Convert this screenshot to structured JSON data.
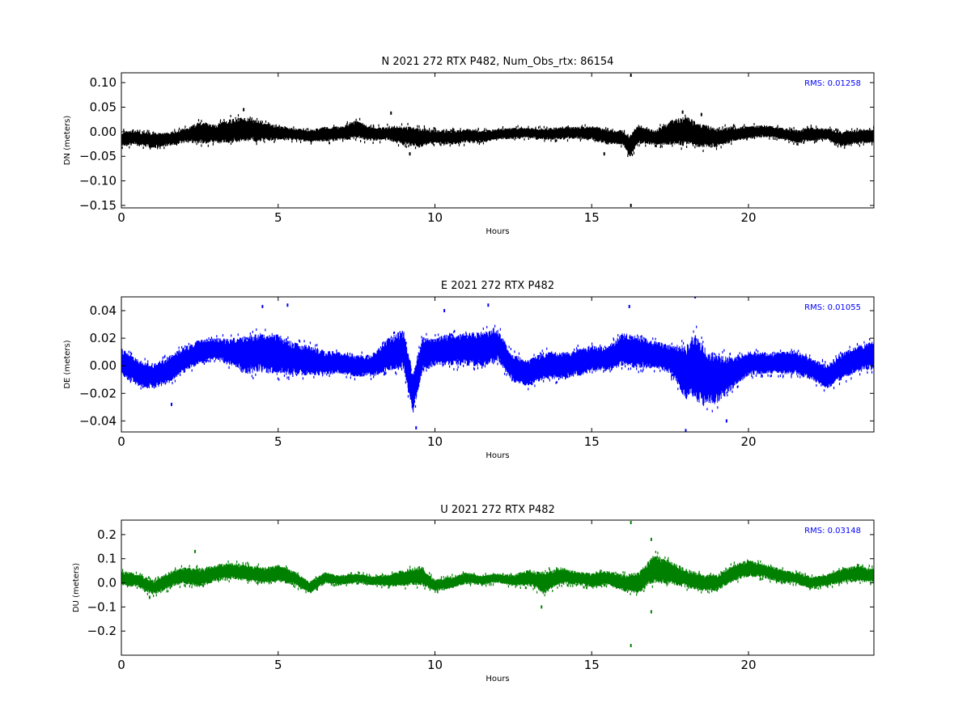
{
  "chart_data": [
    {
      "type": "line",
      "title": "N 2021 272 RTX  P482, Num_Obs_rtx: 86154",
      "xlabel": "Hours",
      "ylabel": "DN (meters)",
      "xlim": [
        0,
        24
      ],
      "ylim": [
        -0.155,
        0.12
      ],
      "xticks": [
        0,
        5,
        10,
        15,
        20
      ],
      "xtick_labels": [
        "0",
        "5",
        "10",
        "15",
        "20"
      ],
      "yticks": [
        0.1,
        0.05,
        0.0,
        -0.05,
        -0.1,
        -0.15
      ],
      "ytick_labels": [
        "0.10",
        "0.05",
        "0.00",
        "−0.05",
        "−0.10",
        "−0.15"
      ],
      "grid": false,
      "annotation": "RMS:  0.01258",
      "annotation_color": "#0000ff",
      "series_color": "#000000",
      "series": [
        {
          "x": [
            0,
            0.5,
            1,
            1.5,
            2,
            2.5,
            3,
            3.5,
            4,
            4.5,
            5,
            5.5,
            6,
            6.5,
            7,
            7.5,
            8,
            8.5,
            9,
            9.5,
            10,
            10.5,
            11,
            11.5,
            12,
            12.5,
            13,
            13.5,
            14,
            14.5,
            15,
            15.5,
            16,
            16.2,
            16.5,
            17,
            17.5,
            18,
            18.5,
            19,
            19.5,
            20,
            20.5,
            21,
            21.5,
            22,
            22.5,
            23,
            23.5,
            24
          ],
          "center": [
            -0.015,
            -0.012,
            -0.018,
            -0.015,
            -0.008,
            -0.002,
            -0.005,
            0.002,
            0.005,
            0.0,
            -0.002,
            -0.005,
            -0.008,
            -0.005,
            -0.003,
            0.005,
            -0.005,
            -0.003,
            -0.008,
            -0.012,
            -0.01,
            -0.012,
            -0.008,
            -0.01,
            -0.005,
            -0.003,
            -0.002,
            -0.005,
            -0.003,
            -0.002,
            -0.003,
            -0.01,
            -0.012,
            -0.03,
            -0.005,
            -0.012,
            -0.002,
            0.002,
            -0.008,
            -0.012,
            -0.005,
            -0.002,
            0.002,
            -0.003,
            -0.01,
            -0.005,
            -0.005,
            -0.015,
            -0.01,
            -0.008
          ],
          "spread": [
            0.015,
            0.015,
            0.016,
            0.014,
            0.015,
            0.022,
            0.02,
            0.025,
            0.025,
            0.02,
            0.015,
            0.012,
            0.013,
            0.015,
            0.015,
            0.02,
            0.014,
            0.014,
            0.02,
            0.02,
            0.014,
            0.015,
            0.015,
            0.012,
            0.011,
            0.012,
            0.01,
            0.012,
            0.013,
            0.012,
            0.015,
            0.016,
            0.015,
            0.025,
            0.02,
            0.015,
            0.025,
            0.03,
            0.025,
            0.02,
            0.015,
            0.013,
            0.012,
            0.012,
            0.014,
            0.014,
            0.012,
            0.016,
            0.015,
            0.015
          ],
          "outliers": [
            {
              "x": 16.25,
              "y": 0.115
            },
            {
              "x": 16.25,
              "y": -0.15
            },
            {
              "x": 3.9,
              "y": 0.045
            },
            {
              "x": 8.6,
              "y": 0.038
            },
            {
              "x": 17.9,
              "y": 0.04
            },
            {
              "x": 18.5,
              "y": 0.035
            },
            {
              "x": 9.2,
              "y": -0.045
            },
            {
              "x": 15.4,
              "y": -0.045
            }
          ]
        }
      ]
    },
    {
      "type": "line",
      "title": "E 2021 272 RTX  P482",
      "xlabel": "Hours",
      "ylabel": "DE (meters)",
      "xlim": [
        0,
        24
      ],
      "ylim": [
        -0.048,
        0.05
      ],
      "xticks": [
        0,
        5,
        10,
        15,
        20
      ],
      "xtick_labels": [
        "0",
        "5",
        "10",
        "15",
        "20"
      ],
      "yticks": [
        0.04,
        0.02,
        0.0,
        -0.02,
        -0.04
      ],
      "ytick_labels": [
        "0.04",
        "0.02",
        "0.00",
        "−0.02",
        "−0.04"
      ],
      "grid": false,
      "annotation": "RMS:  0.01055",
      "annotation_color": "#0000ff",
      "series_color": "#0000ff",
      "series": [
        {
          "x": [
            0,
            0.5,
            1,
            1.5,
            2,
            2.5,
            3,
            3.5,
            4,
            4.5,
            5,
            5.5,
            6,
            6.5,
            7,
            7.5,
            8,
            8.5,
            9,
            9.3,
            9.6,
            10,
            10.5,
            11,
            11.5,
            12,
            12.5,
            13,
            13.5,
            14,
            14.5,
            15,
            15.5,
            16,
            16.5,
            17,
            17.5,
            18,
            18.3,
            18.6,
            19,
            19.5,
            20,
            20.5,
            21,
            21.5,
            22,
            22.5,
            23,
            23.5,
            24
          ],
          "center": [
            0.003,
            -0.005,
            -0.008,
            -0.003,
            0.005,
            0.01,
            0.012,
            0.01,
            0.008,
            0.01,
            0.008,
            0.005,
            0.004,
            0.002,
            0.002,
            0.0,
            0.0,
            0.008,
            0.012,
            -0.02,
            0.008,
            0.01,
            0.012,
            0.012,
            0.012,
            0.015,
            -0.002,
            -0.005,
            0.0,
            0.0,
            0.002,
            0.005,
            0.005,
            0.012,
            0.01,
            0.008,
            0.005,
            -0.005,
            0.0,
            -0.008,
            -0.01,
            -0.005,
            0.002,
            0.002,
            0.002,
            0.002,
            -0.002,
            -0.008,
            0.0,
            0.005,
            0.008
          ],
          "spread": [
            0.01,
            0.01,
            0.009,
            0.01,
            0.009,
            0.009,
            0.008,
            0.01,
            0.014,
            0.015,
            0.015,
            0.012,
            0.011,
            0.009,
            0.008,
            0.008,
            0.008,
            0.012,
            0.015,
            0.015,
            0.013,
            0.01,
            0.012,
            0.012,
            0.013,
            0.012,
            0.01,
            0.01,
            0.01,
            0.01,
            0.01,
            0.01,
            0.009,
            0.012,
            0.012,
            0.01,
            0.011,
            0.02,
            0.025,
            0.022,
            0.018,
            0.012,
            0.009,
            0.008,
            0.008,
            0.009,
            0.008,
            0.009,
            0.01,
            0.01,
            0.01
          ],
          "outliers": [
            {
              "x": 4.5,
              "y": 0.043
            },
            {
              "x": 5.3,
              "y": 0.044
            },
            {
              "x": 10.3,
              "y": 0.04
            },
            {
              "x": 11.7,
              "y": 0.044
            },
            {
              "x": 16.2,
              "y": 0.043
            },
            {
              "x": 18.3,
              "y": 0.05
            },
            {
              "x": 18.0,
              "y": -0.047
            },
            {
              "x": 9.4,
              "y": -0.045
            },
            {
              "x": 19.3,
              "y": -0.04
            },
            {
              "x": 1.6,
              "y": -0.028
            }
          ]
        }
      ]
    },
    {
      "type": "line",
      "title": "U 2021 272 RTX  P482",
      "xlabel": "Hours",
      "ylabel": "DU (meters)",
      "xlim": [
        0,
        24
      ],
      "ylim": [
        -0.3,
        0.26
      ],
      "xticks": [
        0,
        5,
        10,
        15,
        20
      ],
      "xtick_labels": [
        "0",
        "5",
        "10",
        "15",
        "20"
      ],
      "yticks": [
        0.2,
        0.1,
        0.0,
        -0.1,
        -0.2
      ],
      "ytick_labels": [
        "0.2",
        "0.1",
        "0.0",
        "−0.1",
        "−0.2"
      ],
      "grid": false,
      "annotation": "RMS:  0.03148",
      "annotation_color": "#0000ff",
      "series_color": "#008000",
      "series": [
        {
          "x": [
            0,
            0.5,
            1,
            1.5,
            2,
            2.5,
            3,
            3.5,
            4,
            4.5,
            5,
            5.5,
            6,
            6.5,
            7,
            7.5,
            8,
            8.5,
            9,
            9.5,
            10,
            10.5,
            11,
            11.5,
            12,
            12.5,
            13,
            13.5,
            14,
            14.5,
            15,
            15.5,
            16,
            16.5,
            17,
            17.5,
            18,
            18.5,
            19,
            19.5,
            20,
            20.5,
            21,
            21.5,
            22,
            22.5,
            23,
            23.5,
            24
          ],
          "center": [
            0.02,
            0.01,
            -0.02,
            0.01,
            0.03,
            0.02,
            0.04,
            0.05,
            0.04,
            0.03,
            0.04,
            0.02,
            -0.02,
            0.02,
            0.01,
            0.02,
            0.01,
            0.01,
            0.02,
            0.03,
            -0.01,
            0.0,
            0.02,
            0.01,
            0.02,
            0.01,
            0.02,
            0.0,
            0.03,
            0.02,
            0.01,
            0.02,
            0.0,
            0.0,
            0.06,
            0.04,
            0.02,
            0.0,
            0.0,
            0.04,
            0.06,
            0.05,
            0.03,
            0.02,
            0.0,
            0.01,
            0.03,
            0.04,
            0.03
          ],
          "spread": [
            0.03,
            0.03,
            0.03,
            0.035,
            0.035,
            0.04,
            0.035,
            0.035,
            0.035,
            0.035,
            0.035,
            0.03,
            0.025,
            0.025,
            0.02,
            0.02,
            0.02,
            0.025,
            0.035,
            0.04,
            0.025,
            0.025,
            0.025,
            0.02,
            0.02,
            0.025,
            0.035,
            0.045,
            0.035,
            0.03,
            0.03,
            0.03,
            0.035,
            0.045,
            0.06,
            0.05,
            0.04,
            0.035,
            0.035,
            0.035,
            0.035,
            0.03,
            0.03,
            0.025,
            0.025,
            0.025,
            0.03,
            0.035,
            0.03
          ],
          "outliers": [
            {
              "x": 16.25,
              "y": 0.25
            },
            {
              "x": 16.25,
              "y": -0.26
            },
            {
              "x": 2.35,
              "y": 0.13
            },
            {
              "x": 16.9,
              "y": 0.18
            },
            {
              "x": 16.9,
              "y": -0.12
            },
            {
              "x": 13.4,
              "y": -0.1
            },
            {
              "x": 0.9,
              "y": -0.06
            }
          ]
        }
      ]
    }
  ]
}
